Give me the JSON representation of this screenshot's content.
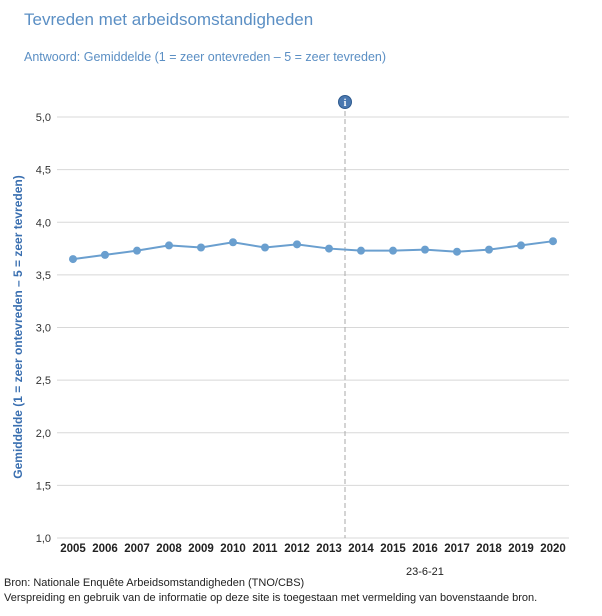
{
  "chart_data": {
    "type": "line",
    "title": "Tevreden met arbeidsomstandigheden",
    "subtitle": "Antwoord: Gemiddelde (1 = zeer ontevreden – 5 = zeer tevreden)",
    "ylabel": "Gemiddelde (1 = zeer ontevreden – 5 = zeer tevreden)",
    "xlabel": "",
    "ylim": [
      1.0,
      5.0
    ],
    "yticks": [
      "1,0",
      "1,5",
      "2,0",
      "2,5",
      "3,0",
      "3,5",
      "4,0",
      "4,5",
      "5,0"
    ],
    "ytick_values": [
      1.0,
      1.5,
      2.0,
      2.5,
      3.0,
      3.5,
      4.0,
      4.5,
      5.0
    ],
    "categories": [
      "2005",
      "2006",
      "2007",
      "2008",
      "2009",
      "2010",
      "2011",
      "2012",
      "2013",
      "2014",
      "2015",
      "2016",
      "2017",
      "2018",
      "2019",
      "2020"
    ],
    "series": [
      {
        "name": "Gemiddelde",
        "values": [
          3.65,
          3.69,
          3.73,
          3.78,
          3.76,
          3.81,
          3.76,
          3.79,
          3.75,
          3.73,
          3.73,
          3.74,
          3.72,
          3.74,
          3.78,
          3.82
        ]
      }
    ],
    "annotation": {
      "between": [
        "2013",
        "2014"
      ],
      "icon": "info-icon",
      "style": "dashed-vertical-line"
    },
    "grid": true,
    "legend": "none"
  },
  "colors": {
    "line": "#6a9fcf",
    "title": "#5b8fc4",
    "grid": "#d8d8d8",
    "annotation": "#aaaaaa"
  },
  "footer": {
    "date": "23-6-21",
    "source": "Bron: Nationale Enquête Arbeidsomstandigheden (TNO/CBS)",
    "notice": "Verspreiding en gebruik van de informatie op deze site is toegestaan met vermelding van bovenstaande bron."
  }
}
